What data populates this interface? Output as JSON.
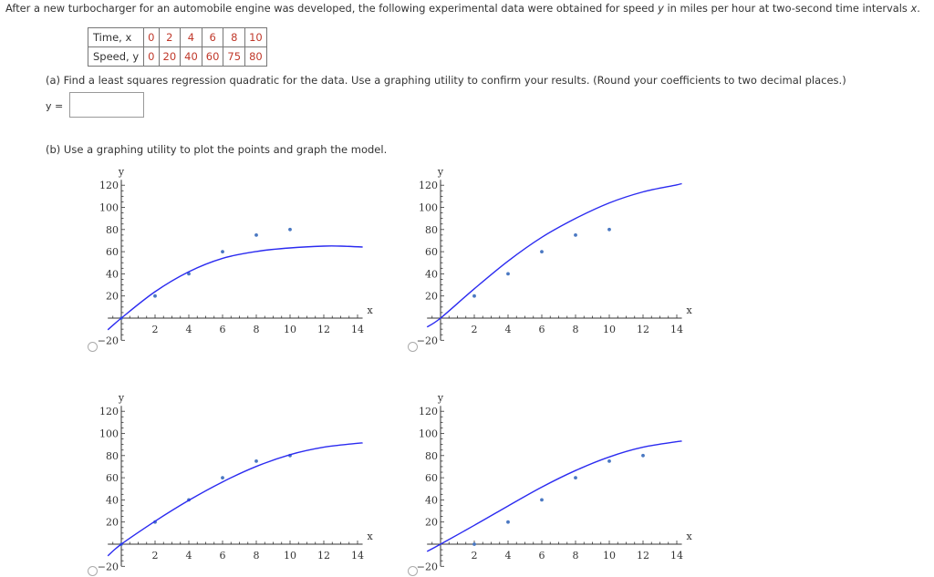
{
  "problem": {
    "text_before_y": "After a new turbocharger for an automobile engine was developed, the following experimental data were obtained for speed ",
    "var_y": "y",
    "text_middle": " in miles per hour at two-second time intervals ",
    "var_x": "x",
    "text_end": "."
  },
  "table": {
    "row1_label": "Time, x",
    "row2_label": "Speed, y",
    "times": [
      "0",
      "2",
      "4",
      "6",
      "8",
      "10"
    ],
    "speeds": [
      "0",
      "20",
      "40",
      "60",
      "75",
      "80"
    ]
  },
  "part_a": {
    "text": "(a) Find a least squares regression quadratic for the data. Use a graphing utility to confirm your results. (Round your coefficients to two decimal places.)",
    "answer_label": "y =",
    "answer_value": ""
  },
  "part_b": {
    "text": "(b) Use a graphing utility to plot the points and graph the model."
  },
  "colors": {
    "curve": "#2b2bf0",
    "points": "#4a78c2",
    "axis": "#333333",
    "value_red": "#c0392b"
  },
  "chart_data": [
    {
      "type": "scatter",
      "xlabel": "x",
      "ylabel": "y",
      "xlim": [
        -0.8,
        14.3
      ],
      "ylim": [
        -20,
        120
      ],
      "xticks": [
        "2",
        "4",
        "6",
        "8",
        "10",
        "12",
        "14"
      ],
      "yticks": [
        "-20",
        "20",
        "40",
        "60",
        "80",
        "100",
        "120"
      ],
      "series": [
        {
          "kind": "points",
          "x": [
            0,
            2,
            4,
            6,
            8,
            10
          ],
          "y": [
            0,
            20,
            40,
            60,
            75,
            80
          ]
        },
        {
          "kind": "curve",
          "x": [
            -0.8,
            0,
            2,
            4,
            6,
            8,
            10,
            12,
            13,
            14.3
          ],
          "y": [
            -10.5,
            0,
            23.9,
            41.9,
            54,
            60.2,
            63.4,
            65,
            65,
            64.2
          ]
        }
      ]
    },
    {
      "type": "scatter",
      "xlabel": "x",
      "ylabel": "y",
      "xlim": [
        -0.8,
        14.3
      ],
      "ylim": [
        -20,
        120
      ],
      "xticks": [
        "2",
        "4",
        "6",
        "8",
        "10",
        "12",
        "14"
      ],
      "yticks": [
        "-20",
        "20",
        "40",
        "60",
        "80",
        "100",
        "120"
      ],
      "series": [
        {
          "kind": "points",
          "x": [
            2,
            4,
            6,
            8,
            10
          ],
          "y": [
            20,
            40,
            60,
            75,
            80
          ]
        },
        {
          "kind": "curve",
          "x": [
            -0.8,
            0,
            2,
            4,
            6,
            8,
            10,
            12,
            14,
            14.3
          ],
          "y": [
            -8,
            0,
            26.5,
            51.5,
            73,
            90,
            104,
            114,
            120.3,
            121.5
          ]
        }
      ]
    },
    {
      "type": "scatter",
      "xlabel": "x",
      "ylabel": "y",
      "xlim": [
        -0.8,
        14.3
      ],
      "ylim": [
        -20,
        120
      ],
      "xticks": [
        "2",
        "4",
        "6",
        "8",
        "10",
        "12",
        "14"
      ],
      "yticks": [
        "-20",
        "20",
        "40",
        "60",
        "80",
        "100",
        "120"
      ],
      "series": [
        {
          "kind": "points",
          "x": [
            0,
            2,
            4,
            6,
            8,
            10
          ],
          "y": [
            0,
            20,
            40,
            60,
            75,
            80
          ]
        },
        {
          "kind": "curve",
          "x": [
            -0.8,
            0,
            2,
            4,
            6,
            8,
            10,
            12,
            14,
            14.3
          ],
          "y": [
            -10.5,
            0,
            20.7,
            39.6,
            56.2,
            70.2,
            80.8,
            87.6,
            91.1,
            91.3
          ]
        }
      ]
    },
    {
      "type": "scatter",
      "xlabel": "x",
      "ylabel": "y",
      "xlim": [
        -0.8,
        14.3
      ],
      "ylim": [
        -20,
        120
      ],
      "xticks": [
        "2",
        "4",
        "6",
        "8",
        "10",
        "12",
        "14"
      ],
      "yticks": [
        "-20",
        "20",
        "40",
        "60",
        "80",
        "100",
        "120"
      ],
      "series": [
        {
          "kind": "points",
          "x": [
            2,
            4,
            6,
            8,
            10,
            12
          ],
          "y": [
            0,
            20,
            40,
            60,
            75,
            80
          ]
        },
        {
          "kind": "curve",
          "x": [
            -0.8,
            0,
            2,
            4,
            6,
            8,
            10,
            12,
            14,
            14.3
          ],
          "y": [
            -6.5,
            0,
            17,
            34.5,
            51.5,
            66.5,
            78.8,
            87.6,
            92.5,
            93
          ]
        }
      ]
    }
  ]
}
